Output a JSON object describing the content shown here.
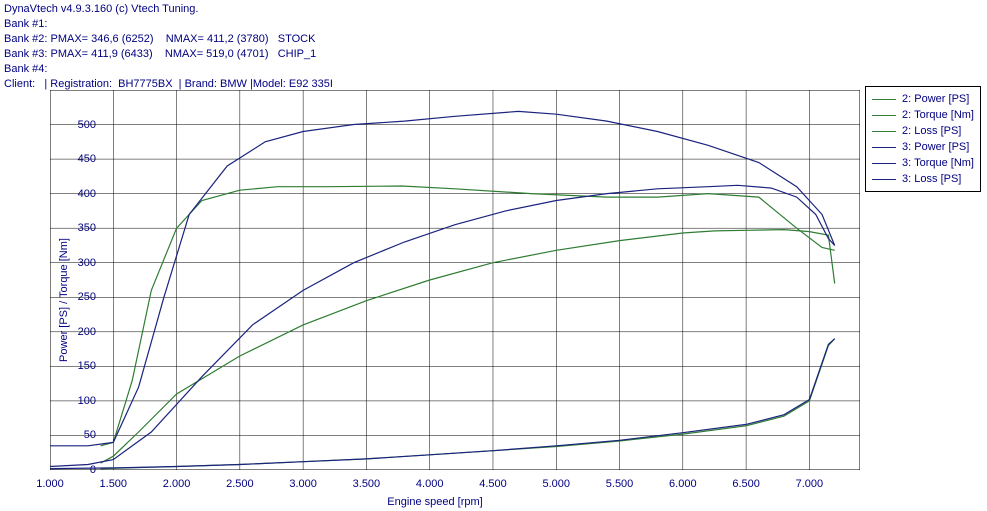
{
  "header": {
    "line1": "DynaVtech v4.9.3.160 (c) Vtech Tuning.",
    "line2": "Bank #1:",
    "line3": "Bank #2: PMAX= 346,6 (6252)    NMAX= 411,2 (3780)   STOCK",
    "line4": "Bank #3: PMAX= 411,9 (6433)    NMAX= 519,0 (4701)   CHIP_1",
    "line5": "Bank #4:",
    "line6": "Client:   | Registration:  BH7775BX  | Brand: BMW |Model: E92 335I"
  },
  "legend": {
    "items": [
      {
        "label": "2: Power [PS]",
        "color": "#2e7d32"
      },
      {
        "label": "2: Torque [Nm]",
        "color": "#2e7d32"
      },
      {
        "label": "2: Loss [PS]",
        "color": "#2e7d32"
      },
      {
        "label": "3: Power [PS]",
        "color": "#1a237e"
      },
      {
        "label": "3: Torque [Nm]",
        "color": "#1a237e"
      },
      {
        "label": "3: Loss [PS]",
        "color": "#1a237e"
      }
    ]
  },
  "chart": {
    "type": "line",
    "xlabel": "Engine speed [rpm]",
    "ylabel": "Power [PS] / Torque [Nm]",
    "xlim": [
      1000,
      7400
    ],
    "ylim": [
      0,
      550
    ],
    "xticks": [
      1000,
      1500,
      2000,
      2500,
      3000,
      3500,
      4000,
      4500,
      5000,
      5500,
      6000,
      6500,
      7000
    ],
    "xtick_labels": [
      "1.000",
      "1.500",
      "2.000",
      "2.500",
      "3.000",
      "3.500",
      "4.000",
      "4.500",
      "5.000",
      "5.500",
      "6.000",
      "6.500",
      "7.000"
    ],
    "yticks": [
      0,
      50,
      100,
      150,
      200,
      250,
      300,
      350,
      400,
      450,
      500
    ],
    "background_color": "#ffffff",
    "grid_color": "#000000",
    "grid_width": 0.5,
    "axis_color": "#000000",
    "text_color": "#000080",
    "title_fontsize": 11,
    "label_fontsize": 11,
    "line_width": 1.2,
    "series": [
      {
        "name": "2_power",
        "color": "#2e7d32",
        "x": [
          1400,
          1500,
          1700,
          2000,
          2500,
          3000,
          3500,
          4000,
          4500,
          5000,
          5500,
          6000,
          6252,
          6500,
          6800,
          7000,
          7150,
          7200
        ],
        "y": [
          10,
          20,
          55,
          110,
          165,
          210,
          245,
          275,
          300,
          318,
          332,
          343,
          346,
          347,
          348,
          345,
          340,
          270
        ]
      },
      {
        "name": "2_torque",
        "color": "#2e7d32",
        "x": [
          1400,
          1500,
          1650,
          1800,
          2000,
          2200,
          2500,
          2800,
          3200,
          3780,
          4200,
          4800,
          5400,
          5800,
          6200,
          6600,
          6900,
          7100,
          7200
        ],
        "y": [
          35,
          40,
          130,
          260,
          350,
          390,
          405,
          410,
          410,
          411,
          407,
          400,
          395,
          395,
          400,
          395,
          350,
          322,
          318
        ]
      },
      {
        "name": "2_loss",
        "color": "#2e7d32",
        "x": [
          1400,
          2000,
          2500,
          3000,
          3500,
          4000,
          4500,
          5000,
          5500,
          6000,
          6500,
          6800,
          7000,
          7150,
          7200
        ],
        "y": [
          2,
          5,
          8,
          12,
          16,
          22,
          28,
          34,
          42,
          52,
          64,
          78,
          100,
          180,
          190
        ]
      },
      {
        "name": "3_power",
        "color": "#1a237e",
        "x": [
          1000,
          1300,
          1500,
          1800,
          2200,
          2600,
          3000,
          3400,
          3800,
          4200,
          4600,
          5000,
          5400,
          5800,
          6200,
          6433,
          6700,
          6900,
          7050,
          7150,
          7200
        ],
        "y": [
          5,
          8,
          15,
          55,
          135,
          210,
          260,
          300,
          330,
          355,
          375,
          390,
          400,
          407,
          410,
          412,
          408,
          395,
          370,
          335,
          325
        ]
      },
      {
        "name": "3_torque",
        "color": "#1a237e",
        "x": [
          1000,
          1300,
          1500,
          1700,
          1900,
          2100,
          2400,
          2700,
          3000,
          3400,
          3800,
          4200,
          4701,
          5000,
          5400,
          5800,
          6200,
          6600,
          6900,
          7100,
          7200
        ],
        "y": [
          35,
          35,
          40,
          120,
          250,
          370,
          440,
          475,
          490,
          500,
          505,
          512,
          519,
          515,
          505,
          490,
          470,
          445,
          410,
          370,
          325
        ]
      },
      {
        "name": "3_loss",
        "color": "#1a237e",
        "x": [
          1000,
          1500,
          2000,
          2500,
          3000,
          3500,
          4000,
          4500,
          5000,
          5500,
          6000,
          6500,
          6800,
          7000,
          7150,
          7200
        ],
        "y": [
          2,
          3,
          5,
          8,
          12,
          16,
          22,
          28,
          35,
          43,
          54,
          66,
          80,
          102,
          182,
          190
        ]
      }
    ]
  }
}
